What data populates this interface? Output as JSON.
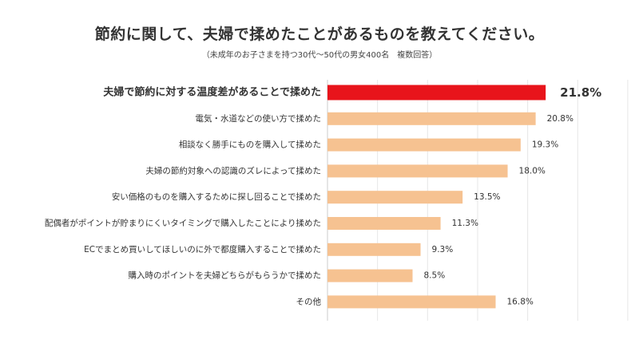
{
  "chart_data": {
    "type": "bar",
    "orientation": "horizontal",
    "title": "節約に関して、夫婦で揉めたことがあるものを教えてください。",
    "subtitle": "（未成年のお子さまを持つ30代〜50代の男女400名　複数回答）",
    "categories": [
      "夫婦で節約に対する温度差があることで揉めた",
      "電気・水道などの使い方で揉めた",
      "相談なく勝手にものを購入して揉めた",
      "夫婦の節約対象への認識のズレによって揉めた",
      "安い価格のものを購入するために探し回ることで揉めた",
      "配偶者がポイントが貯まりにくいタイミングで購入したことにより揉めた",
      "ECでまとめ買いしてほしいのに外で都度購入することで揉めた",
      "購入時のポイントを夫婦どちらがもらうかで揉めた",
      "その他"
    ],
    "values": [
      21.8,
      20.8,
      19.3,
      18.0,
      13.5,
      11.3,
      9.3,
      8.5,
      16.8
    ],
    "value_labels": [
      "21.8%",
      "20.8%",
      "19.3%",
      "18.0%",
      "13.5%",
      "11.3%",
      "9.3%",
      "8.5%",
      "16.8%"
    ],
    "highlight_index": 0,
    "xlim": [
      0,
      30
    ],
    "grid": true,
    "colors": {
      "bar": "#f6c291",
      "highlight_bar": "#e8141b",
      "highlight_text": "#e8141b",
      "grid": "#e6e6e6",
      "axis": "#cccccc",
      "text": "#333333"
    }
  }
}
